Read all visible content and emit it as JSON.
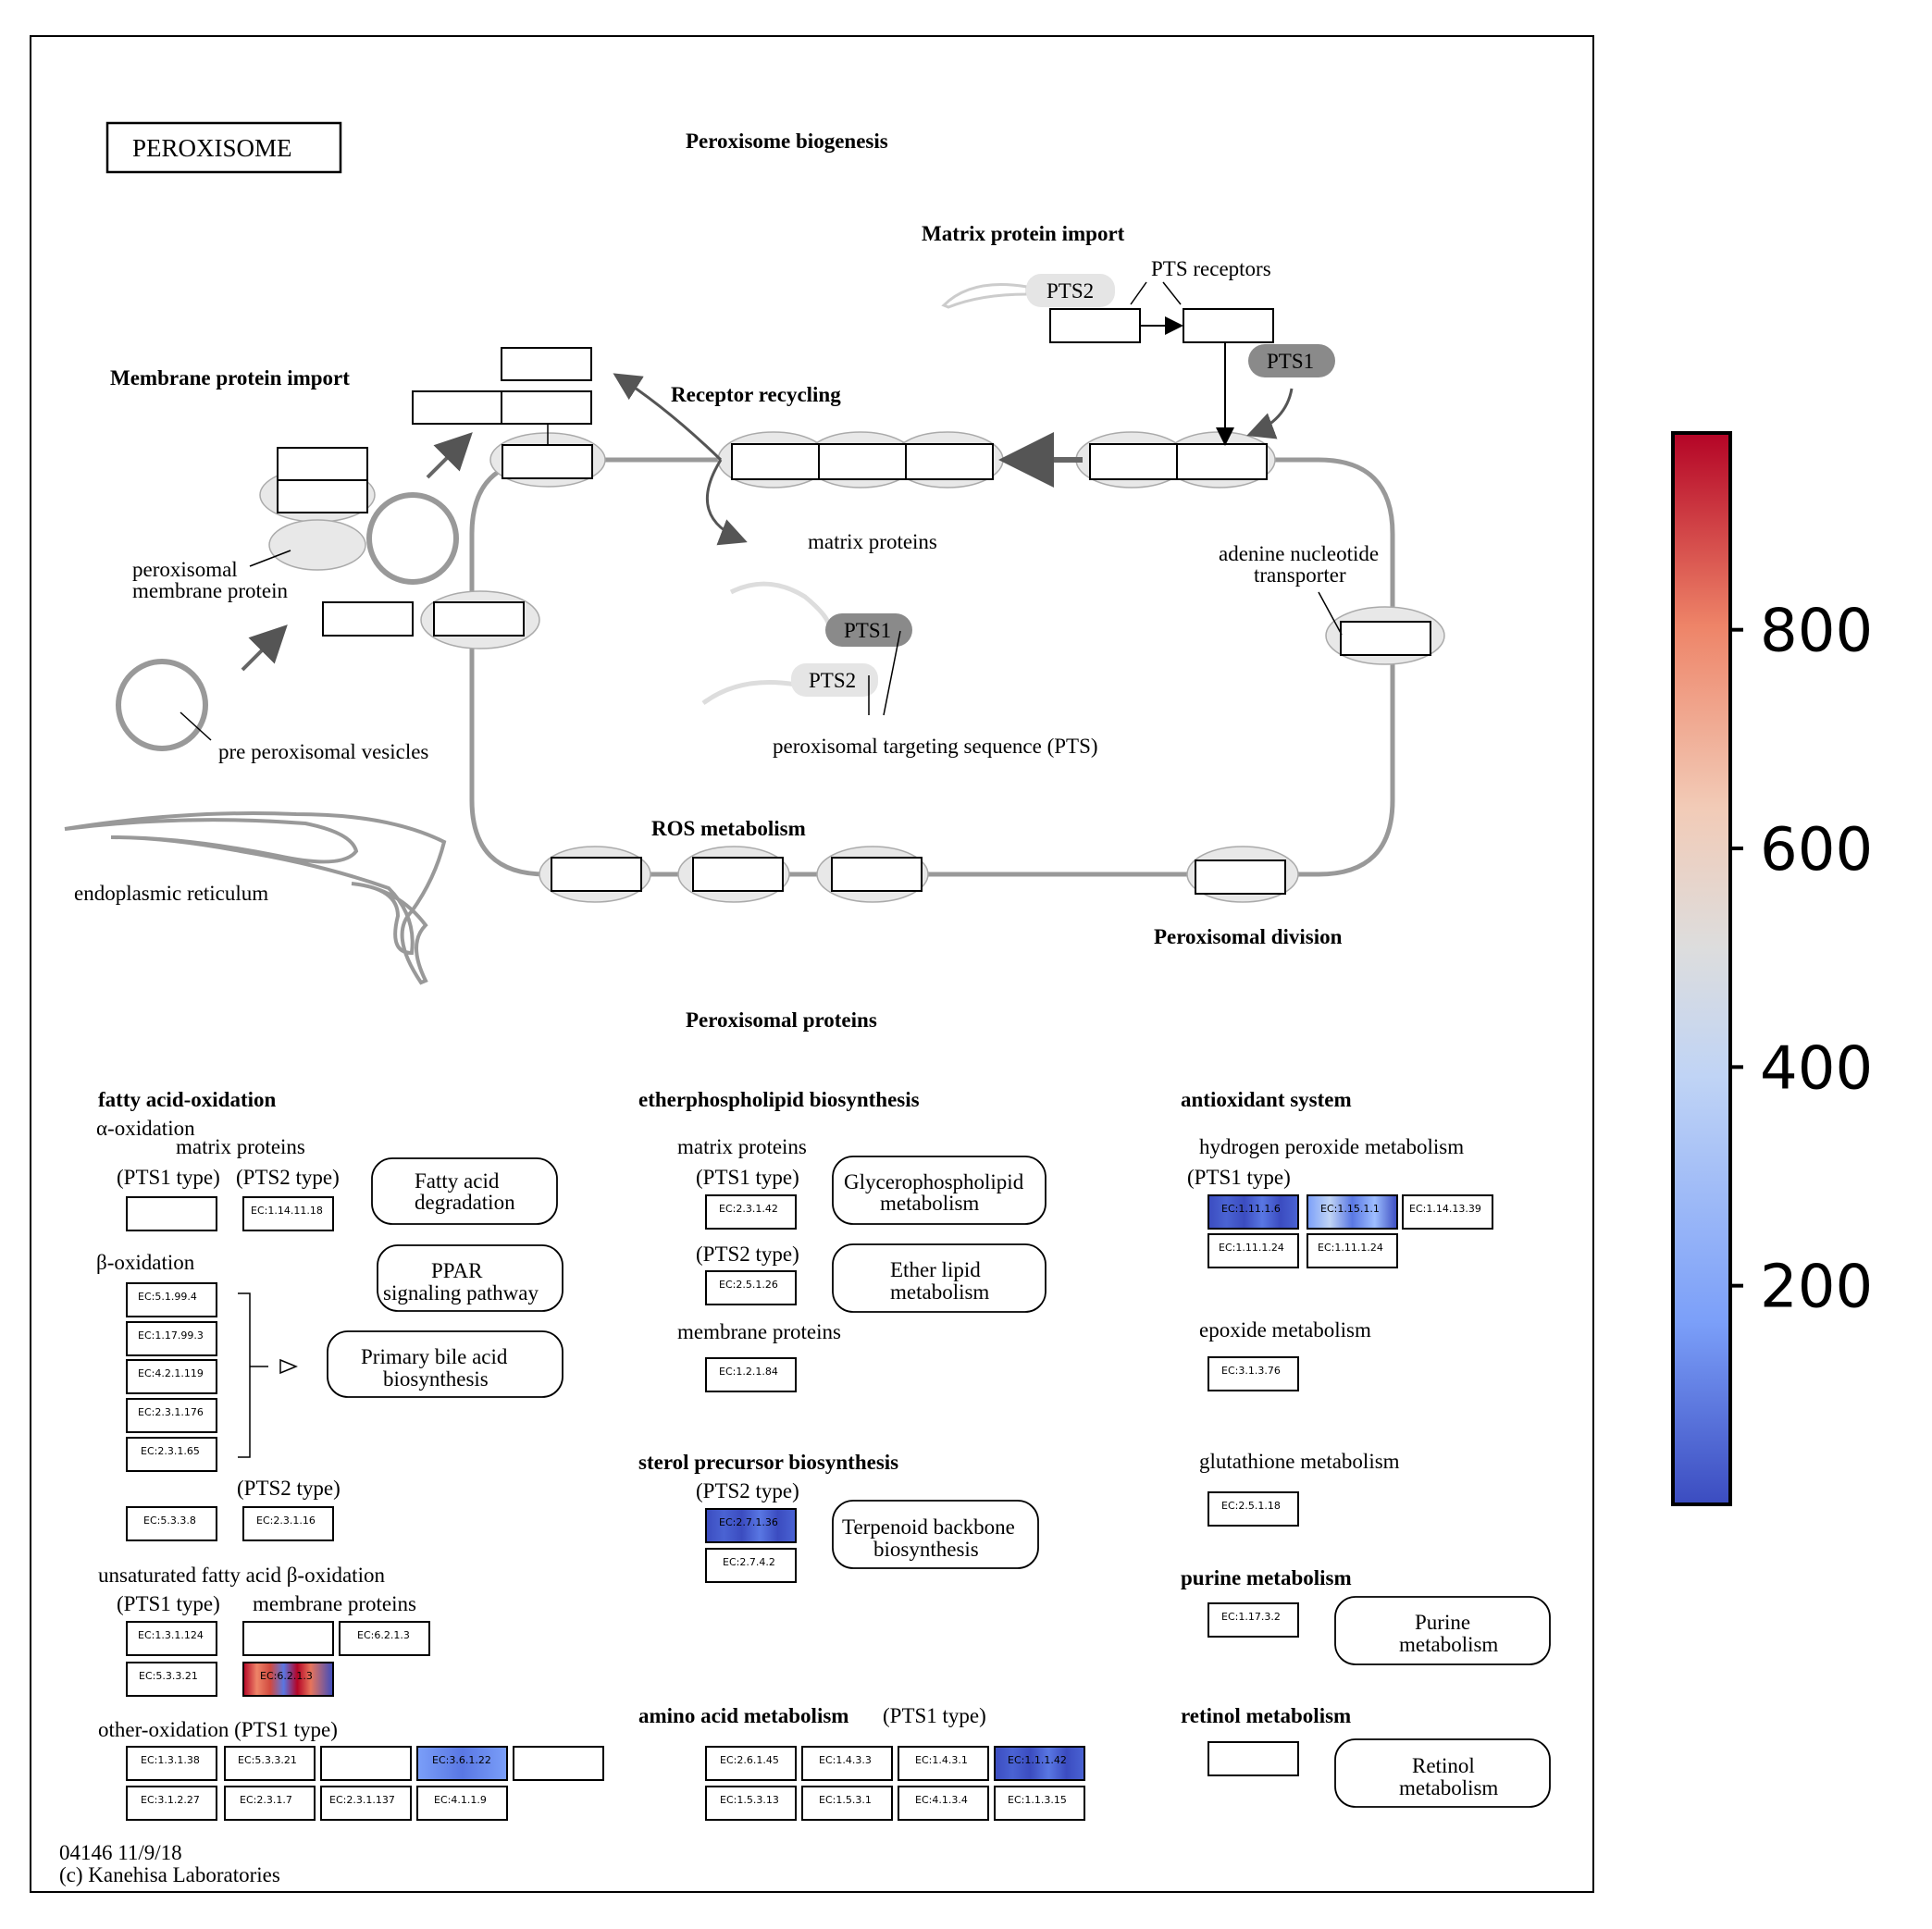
{
  "title": "PEROXISOME",
  "sections": {
    "biogenesis": "Peroxisome biogenesis",
    "matrix_import": "Matrix protein import",
    "membrane_import": "Membrane protein import",
    "receptor_recycling": "Receptor recycling",
    "ros": "ROS metabolism",
    "division": "Peroxisomal division",
    "proteins": "Peroxisomal proteins"
  },
  "labels": {
    "pts_receptors": "PTS receptors",
    "pts2": "PTS2",
    "pts1": "PTS1",
    "matrix_proteins": "matrix proteins",
    "adenine_1": "adenine nucleotide",
    "adenine_2": "transporter",
    "pmp_1": "peroxisomal",
    "pmp_2": "membrane protein",
    "pre_vesicles": "pre peroxisomal vesicles",
    "pts_full": "peroxisomal targeting sequence (PTS)",
    "er": "endoplasmic reticulum"
  },
  "groups": {
    "fatty": "fatty acid-oxidation",
    "alpha": "α-oxidation",
    "matrix_proteins": "matrix proteins",
    "pts1_type": "(PTS1 type)",
    "pts2_type": "(PTS2 type)",
    "beta": "β-oxidation",
    "unsat": "unsaturated fatty acid β-oxidation",
    "membrane_proteins": "membrane proteins",
    "other": "other-oxidation (PTS1 type)",
    "ether": "etherphospholipid biosynthesis",
    "sterol": "sterol precursor biosynthesis",
    "amino": "amino acid metabolism",
    "antiox": "antioxidant system",
    "h2o2": "hydrogen peroxide metabolism",
    "epoxide": "epoxide metabolism",
    "glutathione": "glutathione metabolism",
    "purine": "purine metabolism",
    "retinol": "retinol metabolism"
  },
  "pathways": {
    "fad_1": "Fatty acid",
    "fad_2": "degradation",
    "ppar_1": "PPAR",
    "ppar_2": "signaling pathway",
    "bile_1": "Primary bile acid",
    "bile_2": "biosynthesis",
    "glyc_1": "Glycerophospholipid",
    "glyc_2": "metabolism",
    "ether_1": "Ether lipid",
    "ether_2": "metabolism",
    "terp_1": "Terpenoid backbone",
    "terp_2": "biosynthesis",
    "purine_1": "Purine",
    "purine_2": "metabolism",
    "retinol_1": "Retinol",
    "retinol_2": "metabolism"
  },
  "ec": {
    "ec_1_14_11_18": "EC:1.14.11.18",
    "ec_5_1_99_4": "EC:5.1.99.4",
    "ec_1_17_99_3": "EC:1.17.99.3",
    "ec_4_2_1_119": "EC:4.2.1.119",
    "ec_2_3_1_176": "EC:2.3.1.176",
    "ec_2_3_1_65": "EC:2.3.1.65",
    "ec_5_3_3_8": "EC:5.3.3.8",
    "ec_2_3_1_16": "EC:2.3.1.16",
    "ec_1_3_1_124": "EC:1.3.1.124",
    "ec_6_2_1_3_a": "EC:6.2.1.3",
    "ec_5_3_3_21_a": "EC:5.3.3.21",
    "ec_6_2_1_3_b": "EC:6.2.1.3",
    "ec_1_3_1_38": "EC:1.3.1.38",
    "ec_5_3_3_21_b": "EC:5.3.3.21",
    "ec_3_6_1_22": "EC:3.6.1.22",
    "ec_3_1_2_27": "EC:3.1.2.27",
    "ec_2_3_1_7": "EC:2.3.1.7",
    "ec_2_3_1_137": "EC:2.3.1.137",
    "ec_4_1_1_9": "EC:4.1.1.9",
    "ec_2_3_1_42": "EC:2.3.1.42",
    "ec_2_5_1_26": "EC:2.5.1.26",
    "ec_1_2_1_84": "EC:1.2.1.84",
    "ec_2_7_1_36": "EC:2.7.1.36",
    "ec_2_7_4_2": "EC:2.7.4.2",
    "ec_2_6_1_45": "EC:2.6.1.45",
    "ec_1_4_3_3": "EC:1.4.3.3",
    "ec_1_4_3_1": "EC:1.4.3.1",
    "ec_1_1_1_42": "EC:1.1.1.42",
    "ec_1_5_3_13": "EC:1.5.3.13",
    "ec_1_5_3_1": "EC:1.5.3.1",
    "ec_4_1_3_4": "EC:4.1.3.4",
    "ec_1_1_3_15": "EC:1.1.3.15",
    "ec_1_11_1_6": "EC:1.11.1.6",
    "ec_1_15_1_1": "EC:1.15.1.1",
    "ec_1_14_13_39": "EC:1.14.13.39",
    "ec_1_11_1_24_a": "EC:1.11.1.24",
    "ec_1_11_1_24_b": "EC:1.11.1.24",
    "ec_3_1_3_76": "EC:3.1.3.76",
    "ec_2_5_1_18": "EC:2.5.1.18",
    "ec_1_17_3_2": "EC:1.17.3.2"
  },
  "colorbar": {
    "ticks": [
      800,
      600,
      400,
      200
    ],
    "tick_labels": [
      "800",
      "600",
      "400",
      "200"
    ],
    "min_value": 0,
    "max_value": 980,
    "stops": [
      "#3b4cc0",
      "#7b9ff9",
      "#c0d4f5",
      "#dddddd",
      "#f2cbb7",
      "#ee8468",
      "#b40426"
    ]
  },
  "footer": {
    "line1": "04146 11/9/18",
    "line2": "(c) Kanehisa Laboratories"
  }
}
